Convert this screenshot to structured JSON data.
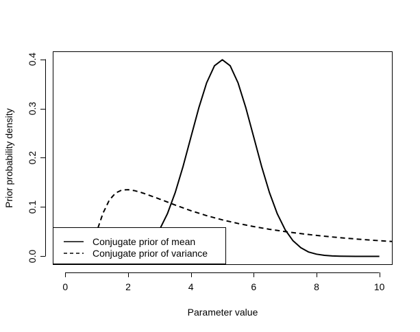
{
  "chart_data": {
    "type": "line",
    "title": "",
    "xlabel": "Parameter value",
    "ylabel": "Prior probability density",
    "xlim": [
      -0.4,
      10.4
    ],
    "ylim": [
      -0.016,
      0.416
    ],
    "x_ticks": [
      0,
      2,
      4,
      6,
      8,
      10
    ],
    "x_tick_labels": [
      "0",
      "2",
      "4",
      "6",
      "8",
      "10"
    ],
    "y_ticks": [
      0.0,
      0.1,
      0.2,
      0.3,
      0.4
    ],
    "y_tick_labels": [
      "0.0",
      "0.1",
      "0.2",
      "0.3",
      "0.4"
    ],
    "grid": false,
    "legend": {
      "position": "bottom-left",
      "entries": [
        {
          "label": "Conjugate prior of mean",
          "style": "solid"
        },
        {
          "label": "Conjugate prior of variance",
          "style": "dashed"
        }
      ]
    },
    "series": [
      {
        "name": "Conjugate prior of mean",
        "style": "solid",
        "color": "#000000",
        "x": [
          0,
          0.25,
          0.5,
          0.75,
          1,
          1.25,
          1.5,
          1.75,
          2,
          2.25,
          2.5,
          2.75,
          3,
          3.25,
          3.5,
          3.75,
          4,
          4.25,
          4.5,
          4.75,
          5,
          5.25,
          5.5,
          5.75,
          6,
          6.25,
          6.5,
          6.75,
          7,
          7.25,
          7.5,
          7.75,
          8,
          8.25,
          8.5,
          8.75,
          9,
          9.25,
          9.5,
          9.75,
          10
        ],
        "y": [
          0.0,
          0.0,
          0.0,
          0.0,
          0.0001,
          0.0002,
          0.0004,
          0.0009,
          0.0044,
          0.0087,
          0.0175,
          0.0317,
          0.054,
          0.0863,
          0.1295,
          0.1826,
          0.242,
          0.3011,
          0.3521,
          0.3867,
          0.3989,
          0.3867,
          0.3521,
          0.3011,
          0.242,
          0.1826,
          0.1295,
          0.0863,
          0.054,
          0.0317,
          0.0175,
          0.0087,
          0.0044,
          0.002,
          0.0009,
          0.0004,
          0.0001,
          0.0,
          0.0,
          0.0,
          0.0
        ]
      },
      {
        "name": "Conjugate prior of variance",
        "style": "dashed",
        "color": "#000000",
        "x": [
          0.05,
          0.1,
          0.2,
          0.3,
          0.4,
          0.5,
          0.6,
          0.7,
          0.8,
          0.9,
          1.0,
          1.2,
          1.4,
          1.6,
          1.8,
          2.0,
          2.2,
          2.4,
          2.6,
          2.8,
          3.0,
          3.5,
          4.0,
          4.5,
          5.0,
          5.5,
          6.0,
          6.5,
          7.0,
          7.5,
          8.0,
          8.5,
          9.0,
          9.5,
          10.0,
          10.4
        ],
        "y": [
          0.0,
          0.0,
          0.0,
          0.0,
          0.0,
          0.0,
          0.0008,
          0.0046,
          0.0146,
          0.0305,
          0.0503,
          0.0876,
          0.114,
          0.1285,
          0.1346,
          0.1353,
          0.1334,
          0.1299,
          0.1256,
          0.121,
          0.1163,
          0.1041,
          0.0926,
          0.0826,
          0.074,
          0.0667,
          0.0604,
          0.0549,
          0.0502,
          0.0461,
          0.0425,
          0.0393,
          0.0365,
          0.034,
          0.0318,
          0.0302
        ]
      }
    ]
  }
}
